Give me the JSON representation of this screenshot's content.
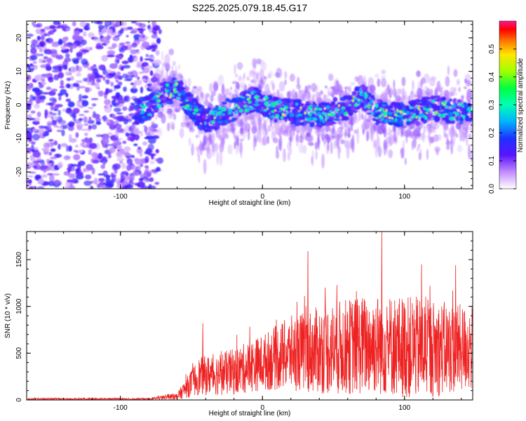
{
  "figure_title": "S225.2025.079.18.45.G17",
  "chart_data": [
    {
      "type": "heatmap",
      "title": "S225.2025.079.18.45.G17",
      "xlabel": "Height of straight line (km)",
      "ylabel": "Frequency (Hz)",
      "xlim": [
        -166,
        148
      ],
      "ylim": [
        -25,
        25
      ],
      "x_ticks": [
        -100,
        0,
        100
      ],
      "y_ticks": [
        -20,
        -10,
        0,
        10,
        20
      ],
      "colorbar": {
        "label": "Normalized spectral amplitude",
        "range": [
          0,
          0.6
        ],
        "ticks": [
          0.0,
          0.1,
          0.2,
          0.3,
          0.4,
          0.5
        ],
        "colormap": [
          "#ffffff",
          "#8c1aff",
          "#2020ff",
          "#00b4ff",
          "#00ffb4",
          "#00ff40",
          "#a0ff00",
          "#ffe600",
          "#ff7800",
          "#ff0000",
          "#ff1493"
        ]
      },
      "features": {
        "noise_region_x": [
          -166,
          -72
        ],
        "signal_track": [
          {
            "x": -90,
            "y": -2
          },
          {
            "x": -80,
            "y": -1
          },
          {
            "x": -70,
            "y": 3
          },
          {
            "x": -60,
            "y": 5
          },
          {
            "x": -52,
            "y": 0
          },
          {
            "x": -40,
            "y": -5
          },
          {
            "x": -30,
            "y": -3
          },
          {
            "x": -15,
            "y": 0
          },
          {
            "x": -5,
            "y": 2
          },
          {
            "x": 5,
            "y": -1
          },
          {
            "x": 20,
            "y": -2
          },
          {
            "x": 40,
            "y": -3
          },
          {
            "x": 60,
            "y": -1
          },
          {
            "x": 70,
            "y": 3
          },
          {
            "x": 80,
            "y": -2
          },
          {
            "x": 100,
            "y": -3
          },
          {
            "x": 120,
            "y": -1
          },
          {
            "x": 140,
            "y": -2
          }
        ]
      }
    },
    {
      "type": "line",
      "xlabel": "Height of straight line (km)",
      "ylabel": "SNR (10 * v/v)",
      "xlim": [
        -166,
        148
      ],
      "ylim": [
        0,
        1800
      ],
      "x_ticks": [
        -100,
        0,
        100
      ],
      "y_ticks": [
        0,
        500,
        1000,
        1500
      ],
      "color": "#ee2222",
      "envelope": [
        {
          "x": -166,
          "base": 10,
          "spread": 10
        },
        {
          "x": -80,
          "base": 10,
          "spread": 10
        },
        {
          "x": -60,
          "base": 40,
          "spread": 40
        },
        {
          "x": -45,
          "base": 250,
          "spread": 200
        },
        {
          "x": -20,
          "base": 300,
          "spread": 250
        },
        {
          "x": 0,
          "base": 400,
          "spread": 300
        },
        {
          "x": 20,
          "base": 500,
          "spread": 400
        },
        {
          "x": 50,
          "base": 550,
          "spread": 500
        },
        {
          "x": 80,
          "base": 600,
          "spread": 550
        },
        {
          "x": 110,
          "base": 550,
          "spread": 550
        },
        {
          "x": 148,
          "base": 550,
          "spread": 450
        }
      ],
      "peaks": [
        {
          "x": -42,
          "y": 820
        },
        {
          "x": 32,
          "y": 1590
        },
        {
          "x": 84,
          "y": 1800
        },
        {
          "x": 112,
          "y": 1450
        },
        {
          "x": 136,
          "y": 1440
        }
      ]
    }
  ]
}
